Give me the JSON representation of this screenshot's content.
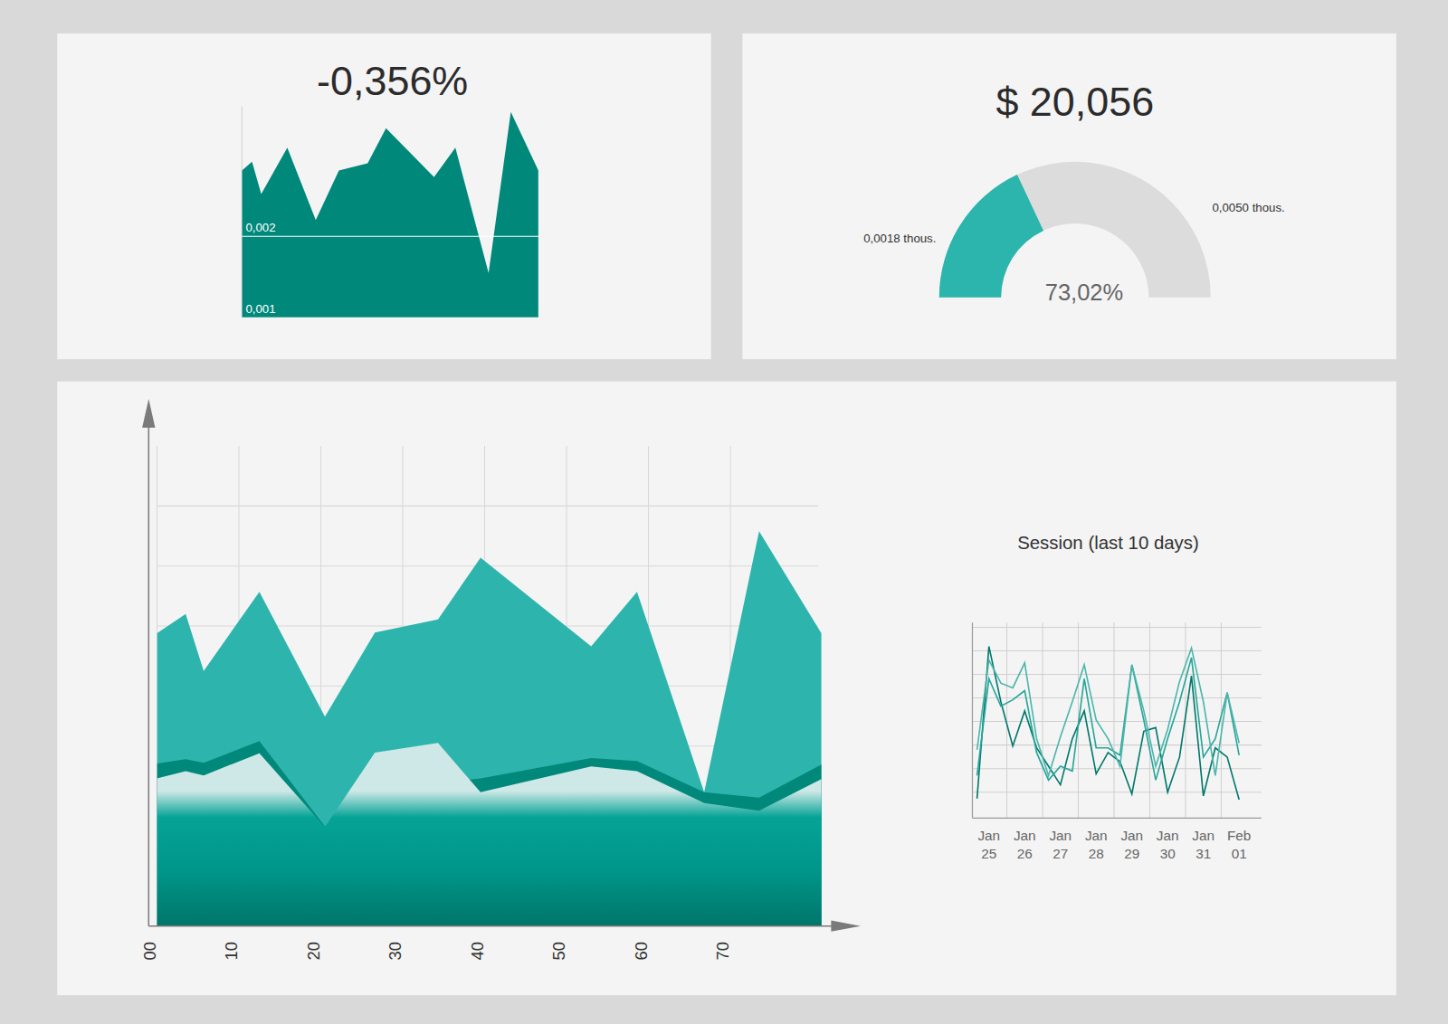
{
  "chart_data": [
    {
      "type": "area",
      "title": "-0,356%",
      "x": [
        0,
        3.4,
        6.5,
        15.3,
        24.9,
        32.7,
        42.4,
        48.6,
        64.8,
        72,
        83.2,
        90.7,
        100
      ],
      "values": [
        0.00281,
        0.00292,
        0.00252,
        0.00309,
        0.0022,
        0.00281,
        0.0029,
        0.00333,
        0.00273,
        0.00309,
        0.00155,
        0.00353,
        0.00281
      ],
      "color": "#00897b",
      "xlim": [
        0,
        100
      ],
      "ylim": [
        0.001,
        0.0036
      ],
      "yticks": [
        {
          "value": 0.001,
          "label": "0,001"
        },
        {
          "value": 0.002,
          "label": "0,002"
        }
      ],
      "grid": true,
      "tick_labels": "y"
    },
    {
      "type": "gauge",
      "title": "$ 20,056",
      "values": [
        0.0018
      ],
      "value_labels": [
        "0,0018 thous."
      ],
      "data_labels": true,
      "colors": [
        "#2bb5ad"
      ],
      "ylim": [
        0,
        0.005
      ],
      "yticks": [
        {
          "value": 0.005,
          "label": "0,0050 thous."
        }
      ],
      "annotation": "73,02%"
    },
    {
      "type": "area",
      "x": [
        0,
        3.5,
        5.7,
        12.5,
        20.5,
        26.6,
        34.3,
        39.5,
        53,
        58.6,
        66.8,
        73.5,
        81.1
      ],
      "series": [
        {
          "color": "#2db5ad",
          "values": [
            48.8,
            52,
            42.5,
            55.7,
            34.9,
            48.9,
            51.1,
            61.4,
            46.6,
            55.7,
            22.3,
            65.8,
            48.8
          ]
        },
        {
          "color": "#00897b",
          "values": [
            27.1,
            27.8,
            27.2,
            30.8,
            16.6,
            22.3,
            23.8,
            24.6,
            28,
            27.5,
            22.3,
            21.4,
            26.9
          ]
        },
        {
          "color": "#cde8e6",
          "values": [
            24.6,
            25.8,
            25.1,
            28.8,
            16.5,
            28.9,
            30.5,
            22.3,
            26.6,
            25.8,
            20.5,
            19.2,
            24.5
          ]
        }
      ],
      "xlim": [
        0,
        85
      ],
      "ylim": [
        0,
        80
      ],
      "xticks": [
        {
          "value": 0,
          "label": "00"
        },
        10,
        20,
        30,
        40,
        50,
        60,
        70
      ],
      "yticks": [
        10,
        20,
        30,
        40,
        50,
        60,
        70
      ],
      "grid": true,
      "tick_labels": "x",
      "stacked": false
    },
    {
      "type": "line",
      "title": "Session (last 10 days)",
      "categories": [
        null,
        "Jan 25",
        null,
        null,
        "Jan 26",
        null,
        null,
        "Jan 27",
        null,
        null,
        "Jan 28",
        null,
        null,
        "Jan 29",
        null,
        null,
        "Jan 30",
        null,
        null,
        "Jan 31",
        null,
        null,
        "Feb 01"
      ],
      "series": [
        {
          "color": "#00796b",
          "values": [
            7.2,
            71.9,
            48.4,
            29.6,
            44.5,
            28.8,
            21,
            13.1,
            32.7,
            44.5,
            17.8,
            26.8,
            22.9,
            9.2,
            35.9,
            37.4,
            10,
            24.9,
            59.4,
            8.4,
            28.8,
            24.9,
            6.8
          ]
        },
        {
          "color": "#26a69a",
          "values": [
            17,
            58.2,
            46.5,
            49.2,
            53.1,
            26.8,
            15.1,
            21,
            19,
            58.2,
            28.8,
            28.8,
            25.7,
            64.1,
            40.6,
            15.1,
            32.7,
            48.4,
            67.2,
            24.9,
            32.7,
            52.3,
            25.7
          ]
        },
        {
          "color": "#4db6ac",
          "values": [
            28,
            66.1,
            56.3,
            54.3,
            64.9,
            32.7,
            17,
            33.5,
            48.4,
            64.1,
            40.6,
            32.7,
            21,
            64.1,
            44.5,
            21,
            36.6,
            57,
            71.2,
            48.4,
            17,
            52.3,
            30.8
          ]
        }
      ],
      "ylim": [
        -1,
        82
      ],
      "yticks": [
        10,
        20,
        30,
        40,
        50,
        60,
        70,
        80
      ],
      "grid": true,
      "tick_labels": "x"
    }
  ]
}
